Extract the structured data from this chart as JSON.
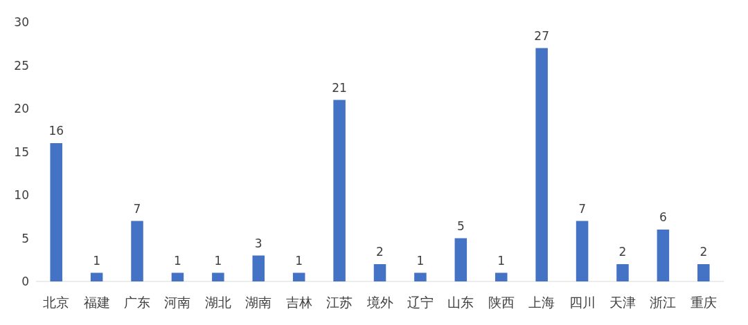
{
  "chart_data": {
    "type": "bar",
    "categories": [
      "北京",
      "福建",
      "广东",
      "河南",
      "湖北",
      "湖南",
      "吉林",
      "江苏",
      "境外",
      "辽宁",
      "山东",
      "陕西",
      "上海",
      "四川",
      "天津",
      "浙江",
      "重庆"
    ],
    "values": [
      16,
      1,
      7,
      1,
      1,
      3,
      1,
      21,
      2,
      1,
      5,
      1,
      27,
      7,
      2,
      6,
      2
    ],
    "color": "#4472c4",
    "ylim": [
      0,
      30
    ],
    "yticks": [
      0,
      5,
      10,
      15,
      20,
      25,
      30
    ],
    "grid": false,
    "data_labels": true
  }
}
